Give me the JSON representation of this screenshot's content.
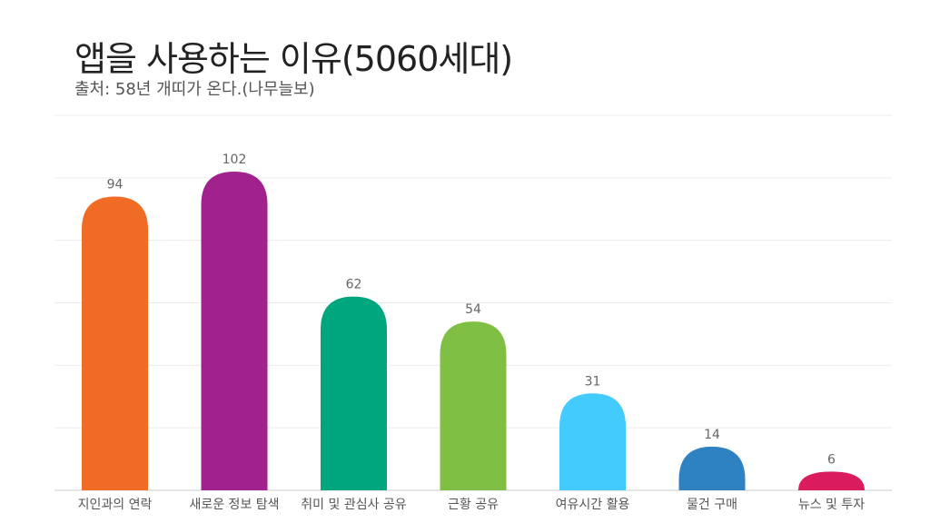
{
  "title": "앱을 사용하는 이유(5060세대)",
  "subtitle": "출처: 58년 개띠가 온다.(나무늘보)",
  "chart_data": {
    "type": "bar",
    "categories": [
      "지인과의 연락",
      "새로운 정보 탐색",
      "취미 및 관심사 공유",
      "근황 공유",
      "여유시간 활용",
      "물건 구매",
      "뉴스 및 투자"
    ],
    "values": [
      94,
      102,
      62,
      54,
      31,
      14,
      6
    ],
    "colors": [
      "#f06b23",
      "#a2228d",
      "#00a77e",
      "#7fbf44",
      "#44cbfd",
      "#2f82c2",
      "#da1b5e"
    ],
    "ylim": [
      0,
      120
    ],
    "grid": true,
    "legend": "none"
  }
}
